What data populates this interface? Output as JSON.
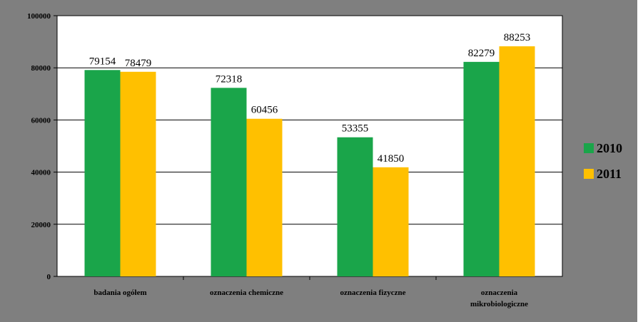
{
  "chart_data": {
    "type": "bar",
    "title": "",
    "xlabel": "",
    "ylabel": "",
    "categories": [
      [
        "badania ogółem"
      ],
      [
        "oznaczenia chemiczne"
      ],
      [
        "oznaczenia fizyczne"
      ],
      [
        "oznaczenia",
        "mikrobiologiczne"
      ]
    ],
    "series": [
      {
        "name": "2010",
        "color": "#1aa54a",
        "values": [
          79154,
          72318,
          53355,
          82279
        ]
      },
      {
        "name": "2011",
        "color": "#ffc000",
        "values": [
          78479,
          60456,
          41850,
          88253
        ]
      }
    ],
    "ylim": [
      0,
      100000
    ],
    "yticks": [
      0,
      20000,
      40000,
      60000,
      80000,
      100000
    ],
    "ytick_labels": [
      "0",
      "20000",
      "40000",
      "60000",
      "80000",
      "100000"
    ],
    "grid": true,
    "legend_position": "right",
    "colors": {
      "frame": "#7f7f7f",
      "plot_background": "#ffffff",
      "gridline": "#000000"
    }
  }
}
